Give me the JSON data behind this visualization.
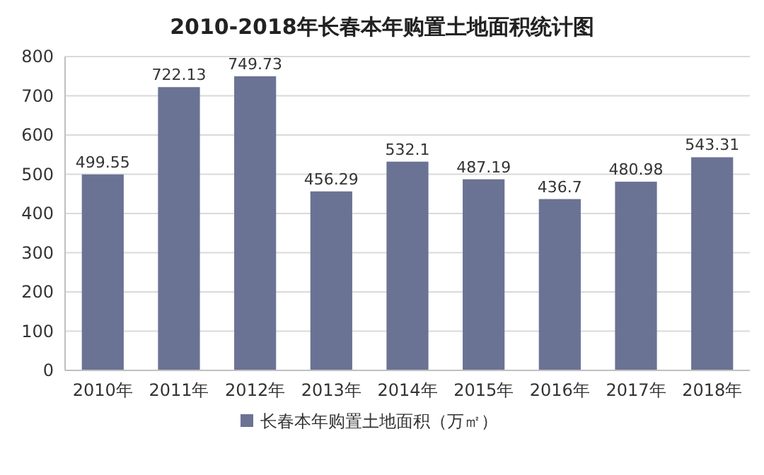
{
  "chart_data": {
    "type": "bar",
    "title": "2010-2018年长春本年购置土地面积统计图",
    "categories": [
      "2010年",
      "2011年",
      "2012年",
      "2013年",
      "2014年",
      "2015年",
      "2016年",
      "2017年",
      "2018年"
    ],
    "series": [
      {
        "name": "长春本年购置土地面积（万㎡）",
        "color": "#6b7394",
        "values": [
          499.55,
          722.13,
          749.73,
          456.29,
          532.1,
          487.19,
          436.7,
          480.98,
          543.31
        ]
      }
    ],
    "ylim": [
      0,
      800
    ],
    "yticks": [
      0,
      100,
      200,
      300,
      400,
      500,
      600,
      700,
      800
    ],
    "grid": "y",
    "legend": "bottom",
    "data_labels": true
  }
}
